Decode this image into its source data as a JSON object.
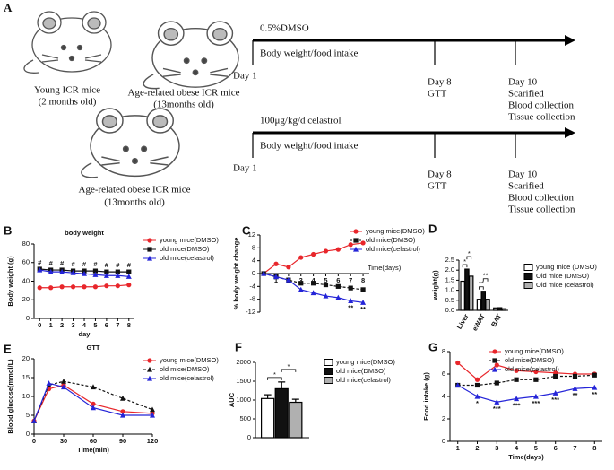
{
  "schematic": {
    "panel": "A",
    "young_label": [
      "Young ICR mice",
      "(2 months old)"
    ],
    "obese_label": [
      "Age-related obese ICR mice",
      "(13months old)"
    ],
    "obese_label_2": [
      "Age-related obese ICR mice",
      "(13months old)"
    ],
    "timelines": [
      {
        "treatment": "0.5%DMSO",
        "measure": "Body weight/food intake",
        "events": [
          {
            "day": "Day 1",
            "lines": []
          },
          {
            "day": "Day 8",
            "lines": [
              "GTT"
            ]
          },
          {
            "day": "Day 10",
            "lines": [
              "Scarified",
              "Blood collection",
              "Tissue collection"
            ]
          }
        ]
      },
      {
        "treatment": "100μg/kg/d  celastrol",
        "measure": "Body weight/food intake",
        "events": [
          {
            "day": "Day 1",
            "lines": []
          },
          {
            "day": "Day 8",
            "lines": [
              "GTT"
            ]
          },
          {
            "day": "Day 10",
            "lines": [
              "Scarified",
              "Blood collection",
              "Tissue collection"
            ]
          }
        ]
      }
    ]
  },
  "chart_data": [
    {
      "type": "line",
      "panel": "B",
      "title": "body weight",
      "xlabel": "day",
      "ylabel": "Body weight (g)",
      "x": [
        0,
        1,
        2,
        3,
        4,
        5,
        6,
        7,
        8
      ],
      "xlim": [
        -0.5,
        8.5
      ],
      "xticks": [
        0,
        1,
        2,
        3,
        4,
        5,
        6,
        7,
        8
      ],
      "ylim": [
        0,
        80
      ],
      "yticks": [
        0,
        20,
        40,
        60,
        80
      ],
      "series": [
        {
          "name": "young mice(DMSO)",
          "color": "#e8262b",
          "marker": "circle",
          "dashed": false,
          "values": [
            33,
            33,
            34,
            34,
            34,
            34,
            35,
            35,
            36
          ]
        },
        {
          "name": "old mice(DMSO)",
          "color": "#111111",
          "marker": "square",
          "dashed": false,
          "values": [
            53,
            52,
            52,
            51,
            51,
            51,
            50,
            50,
            50
          ]
        },
        {
          "name": "old mice(celastrol)",
          "color": "#2424d8",
          "marker": "triangle",
          "dashed": false,
          "values": [
            52,
            50,
            50,
            49,
            48,
            47,
            46,
            46,
            45
          ]
        }
      ],
      "annotations": [
        {
          "text": "#",
          "x": 0,
          "position": "above"
        },
        {
          "text": "#",
          "x": 1,
          "position": "above"
        },
        {
          "text": "#",
          "x": 2,
          "position": "above"
        },
        {
          "text": "#",
          "x": 3,
          "position": "above"
        },
        {
          "text": "#",
          "x": 4,
          "position": "above"
        },
        {
          "text": "#",
          "x": 5,
          "position": "above"
        },
        {
          "text": "#",
          "x": 6,
          "position": "above"
        },
        {
          "text": "#",
          "x": 7,
          "position": "above"
        },
        {
          "text": "#",
          "x": 8,
          "position": "above"
        }
      ]
    },
    {
      "type": "line",
      "panel": "C",
      "xlabel": "Time(days)",
      "ylabel": "% body weight change",
      "x": [
        0,
        1,
        2,
        3,
        4,
        5,
        6,
        7,
        8
      ],
      "xlim": [
        -0.3,
        8.5
      ],
      "xticks": [
        1,
        2,
        3,
        4,
        5,
        6,
        7,
        8
      ],
      "ylim": [
        -12,
        12
      ],
      "yticks": [
        -12,
        -8,
        -4,
        0,
        4,
        8,
        12
      ],
      "series": [
        {
          "name": "young mice(DMSO)",
          "color": "#e8262b",
          "marker": "circle",
          "dashed": false,
          "values": [
            0,
            3,
            2,
            5,
            6,
            7,
            7.5,
            9,
            9.5
          ]
        },
        {
          "name": "old mice(DMSO)",
          "color": "#111111",
          "marker": "square",
          "dashed": true,
          "values": [
            0,
            -1,
            -2,
            -3,
            -3,
            -3.5,
            -4,
            -4.5,
            -5
          ]
        },
        {
          "name": "old mice(celastrol)",
          "color": "#2424d8",
          "marker": "triangle",
          "dashed": false,
          "values": [
            0,
            -1,
            -2,
            -5,
            -6,
            -7,
            -7.5,
            -8.5,
            -9
          ]
        }
      ],
      "annotations": [
        {
          "text": "**",
          "x": 7,
          "position": "below"
        },
        {
          "text": "**",
          "x": 8,
          "position": "below"
        }
      ]
    },
    {
      "type": "bar",
      "panel": "D",
      "ylabel": "weight(g)",
      "categories": [
        "Liver",
        "eWAT",
        "BAT"
      ],
      "ylim": [
        0,
        2.5
      ],
      "yticks": [
        {
          "value": 0,
          "label": "0.0"
        },
        0.5,
        {
          "value": 1,
          "label": "1.0"
        },
        1.5,
        {
          "value": 2,
          "label": "2.0"
        },
        2.5
      ],
      "series": [
        {
          "name": "young mice (DMSO)",
          "color": "#ffffff",
          "values": [
            1.45,
            0.55,
            0.12
          ]
        },
        {
          "name": "Old mice (DMSO)",
          "color": "#111111",
          "values": [
            2.05,
            0.95,
            0.13
          ]
        },
        {
          "name": "Old mice (celastrol)",
          "color": "#b0b0b0",
          "values": [
            1.7,
            0.55,
            0.08
          ]
        }
      ],
      "annotations": [
        {
          "text": "*",
          "group": 0,
          "pair": [
            0,
            1
          ]
        },
        {
          "text": "*",
          "group": 0,
          "pair": [
            1,
            2
          ]
        },
        {
          "text": "**",
          "group": 1,
          "pair": [
            0,
            1
          ]
        },
        {
          "text": "**",
          "group": 1,
          "pair": [
            1,
            2
          ]
        }
      ]
    },
    {
      "type": "line",
      "panel": "E",
      "title": "GTT",
      "xlabel": "Time(min)",
      "ylabel": "Blood glucose(mmol/L)",
      "x": [
        0,
        15,
        30,
        60,
        90,
        120
      ],
      "xlim": [
        0,
        120
      ],
      "xticks": [
        0,
        30,
        60,
        90,
        120
      ],
      "ylim": [
        0,
        20
      ],
      "yticks": [
        0,
        5,
        10,
        15,
        20
      ],
      "series": [
        {
          "name": "young mice(DMSO)",
          "color": "#e8262b",
          "marker": "circle",
          "dashed": false,
          "values": [
            3.5,
            12,
            13,
            8,
            6,
            5.5
          ]
        },
        {
          "name": "old mice(DMSO)",
          "color": "#111111",
          "marker": "triangle",
          "dashed": true,
          "values": [
            3.5,
            13,
            14,
            12.5,
            9.5,
            6.5
          ]
        },
        {
          "name": "old mice(celastrol)",
          "color": "#2424d8",
          "marker": "triangle",
          "dashed": false,
          "values": [
            3.5,
            13.5,
            12.5,
            7,
            5,
            5
          ]
        }
      ],
      "annotations": []
    },
    {
      "type": "bar",
      "panel": "F",
      "ylabel": "AUC",
      "categories": [
        null
      ],
      "ylim": [
        0,
        2000
      ],
      "yticks": [
        0,
        500,
        1000,
        1500,
        2000
      ],
      "series": [
        {
          "name": "young mice(DMSO)",
          "color": "#ffffff",
          "values": [
            1040
          ],
          "errors": [
            100
          ]
        },
        {
          "name": "old mice(DMSO)",
          "color": "#111111",
          "values": [
            1300
          ],
          "errors": [
            180
          ]
        },
        {
          "name": "old mice(celastrol)",
          "color": "#b0b0b0",
          "values": [
            940
          ],
          "errors": [
            80
          ]
        }
      ],
      "annotations": [
        {
          "text": "*",
          "group": 0,
          "pair": [
            0,
            1
          ]
        },
        {
          "text": "*",
          "group": 0,
          "pair": [
            1,
            2
          ]
        }
      ]
    },
    {
      "type": "line",
      "panel": "G",
      "xlabel": "Time(days)",
      "ylabel": "Food intake (g)",
      "x": [
        1,
        2,
        3,
        4,
        5,
        6,
        7,
        8
      ],
      "xlim": [
        0.6,
        8.4
      ],
      "xticks": [
        1,
        2,
        3,
        4,
        5,
        6,
        7,
        8
      ],
      "ylim": [
        0,
        8
      ],
      "yticks": [
        0,
        2,
        4,
        6,
        8
      ],
      "series": [
        {
          "name": "young mice(DMSO)",
          "color": "#e8262b",
          "marker": "circle",
          "dashed": false,
          "values": [
            7,
            5.5,
            6.8,
            6.3,
            6.2,
            6.1,
            6,
            6
          ]
        },
        {
          "name": "old mice(DMSO)",
          "color": "#111111",
          "marker": "square",
          "dashed": true,
          "values": [
            5,
            5,
            5.2,
            5.5,
            5.5,
            5.8,
            5.8,
            5.9
          ]
        },
        {
          "name": "old mice(celastrol)",
          "color": "#2424d8",
          "marker": "triangle",
          "dashed": false,
          "values": [
            5,
            4,
            3.5,
            3.8,
            4,
            4.3,
            4.7,
            4.8
          ]
        }
      ],
      "annotations": [
        {
          "text": "*",
          "x": 2,
          "position": "below"
        },
        {
          "text": "***",
          "x": 3,
          "position": "below"
        },
        {
          "text": "***",
          "x": 4,
          "position": "below"
        },
        {
          "text": "***",
          "x": 5,
          "position": "below"
        },
        {
          "text": "***",
          "x": 6,
          "position": "below"
        },
        {
          "text": "**",
          "x": 7,
          "position": "below"
        },
        {
          "text": "**",
          "x": 8,
          "position": "below"
        }
      ]
    }
  ]
}
